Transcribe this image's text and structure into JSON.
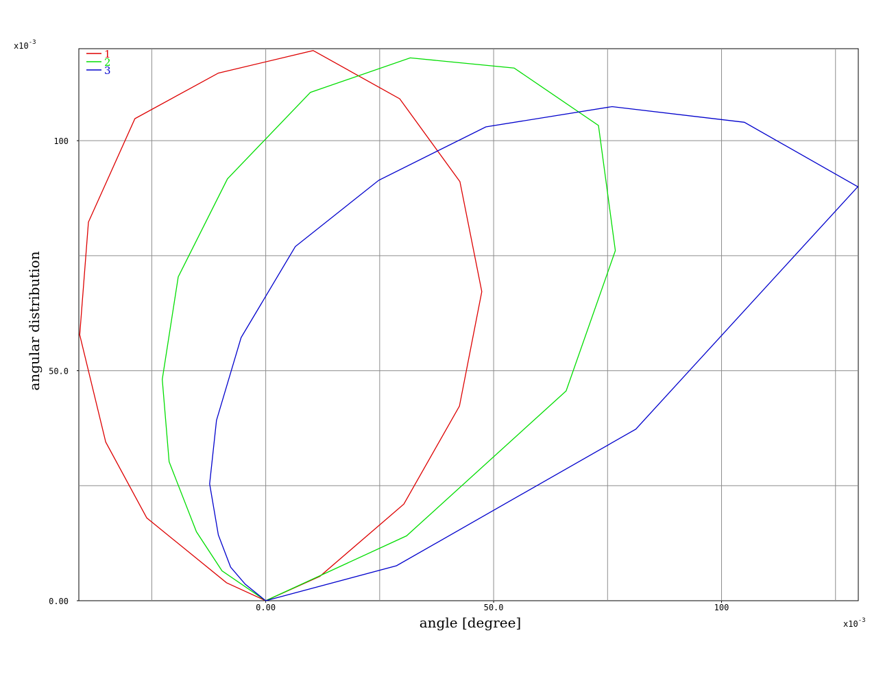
{
  "chart_data": {
    "type": "line",
    "x_label": "angle [degree]",
    "y_label": "angular distribution",
    "multiplier": {
      "base": "x10",
      "exponent": "-3"
    },
    "xlim": [
      -41,
      130
    ],
    "ylim": [
      0,
      120
    ],
    "xticks": [
      {
        "value": 0,
        "label": "0.00"
      },
      {
        "value": 50,
        "label": "50.0"
      },
      {
        "value": 100,
        "label": "100"
      }
    ],
    "yticks": [
      {
        "value": 0,
        "label": "0.00"
      },
      {
        "value": 50,
        "label": "50.0"
      },
      {
        "value": 100,
        "label": "100"
      }
    ],
    "xgrid": [
      -25,
      0,
      25,
      50,
      75,
      100,
      125
    ],
    "ygrid": [
      25,
      50,
      75,
      100
    ],
    "grid": true,
    "legend": "top-left",
    "series": [
      {
        "name": "1",
        "color": "#dd0000",
        "x": [
          0,
          -8.6,
          -26.1,
          -35.1,
          -40.8,
          -38.9,
          -28.7,
          -10.4,
          10.4,
          29.4,
          42.6,
          47.4,
          42.5,
          30.3,
          11.9,
          0
        ],
        "values": [
          0,
          3.9,
          18.0,
          34.5,
          57.8,
          82.3,
          104.8,
          114.7,
          119.6,
          109.1,
          91.1,
          67.2,
          42.3,
          21.0,
          5.3,
          0
        ]
      },
      {
        "name": "2",
        "color": "#00dd00",
        "x": [
          0,
          -9.6,
          -15.2,
          -21.2,
          -22.7,
          -19.2,
          -8.4,
          9.8,
          31.7,
          54.5,
          73.0,
          76.7,
          65.9,
          30.9,
          0
        ],
        "values": [
          0,
          6.5,
          15.0,
          30.2,
          48.1,
          70.4,
          91.7,
          110.5,
          118.0,
          115.8,
          103.3,
          76.1,
          45.6,
          14.1,
          0
        ]
      },
      {
        "name": "3",
        "color": "#0000cc",
        "x": [
          0,
          -4.5,
          -7.7,
          -10.4,
          -12.3,
          -10.8,
          -5.4,
          6.5,
          24.8,
          48.3,
          76.0,
          105.0,
          129.9,
          81.2,
          28.7,
          0
        ],
        "values": [
          0,
          3.6,
          7.3,
          14.3,
          25.4,
          39.2,
          57.2,
          77.0,
          91.4,
          103.0,
          107.4,
          104.0,
          90.0,
          37.3,
          7.6,
          0
        ]
      }
    ]
  }
}
